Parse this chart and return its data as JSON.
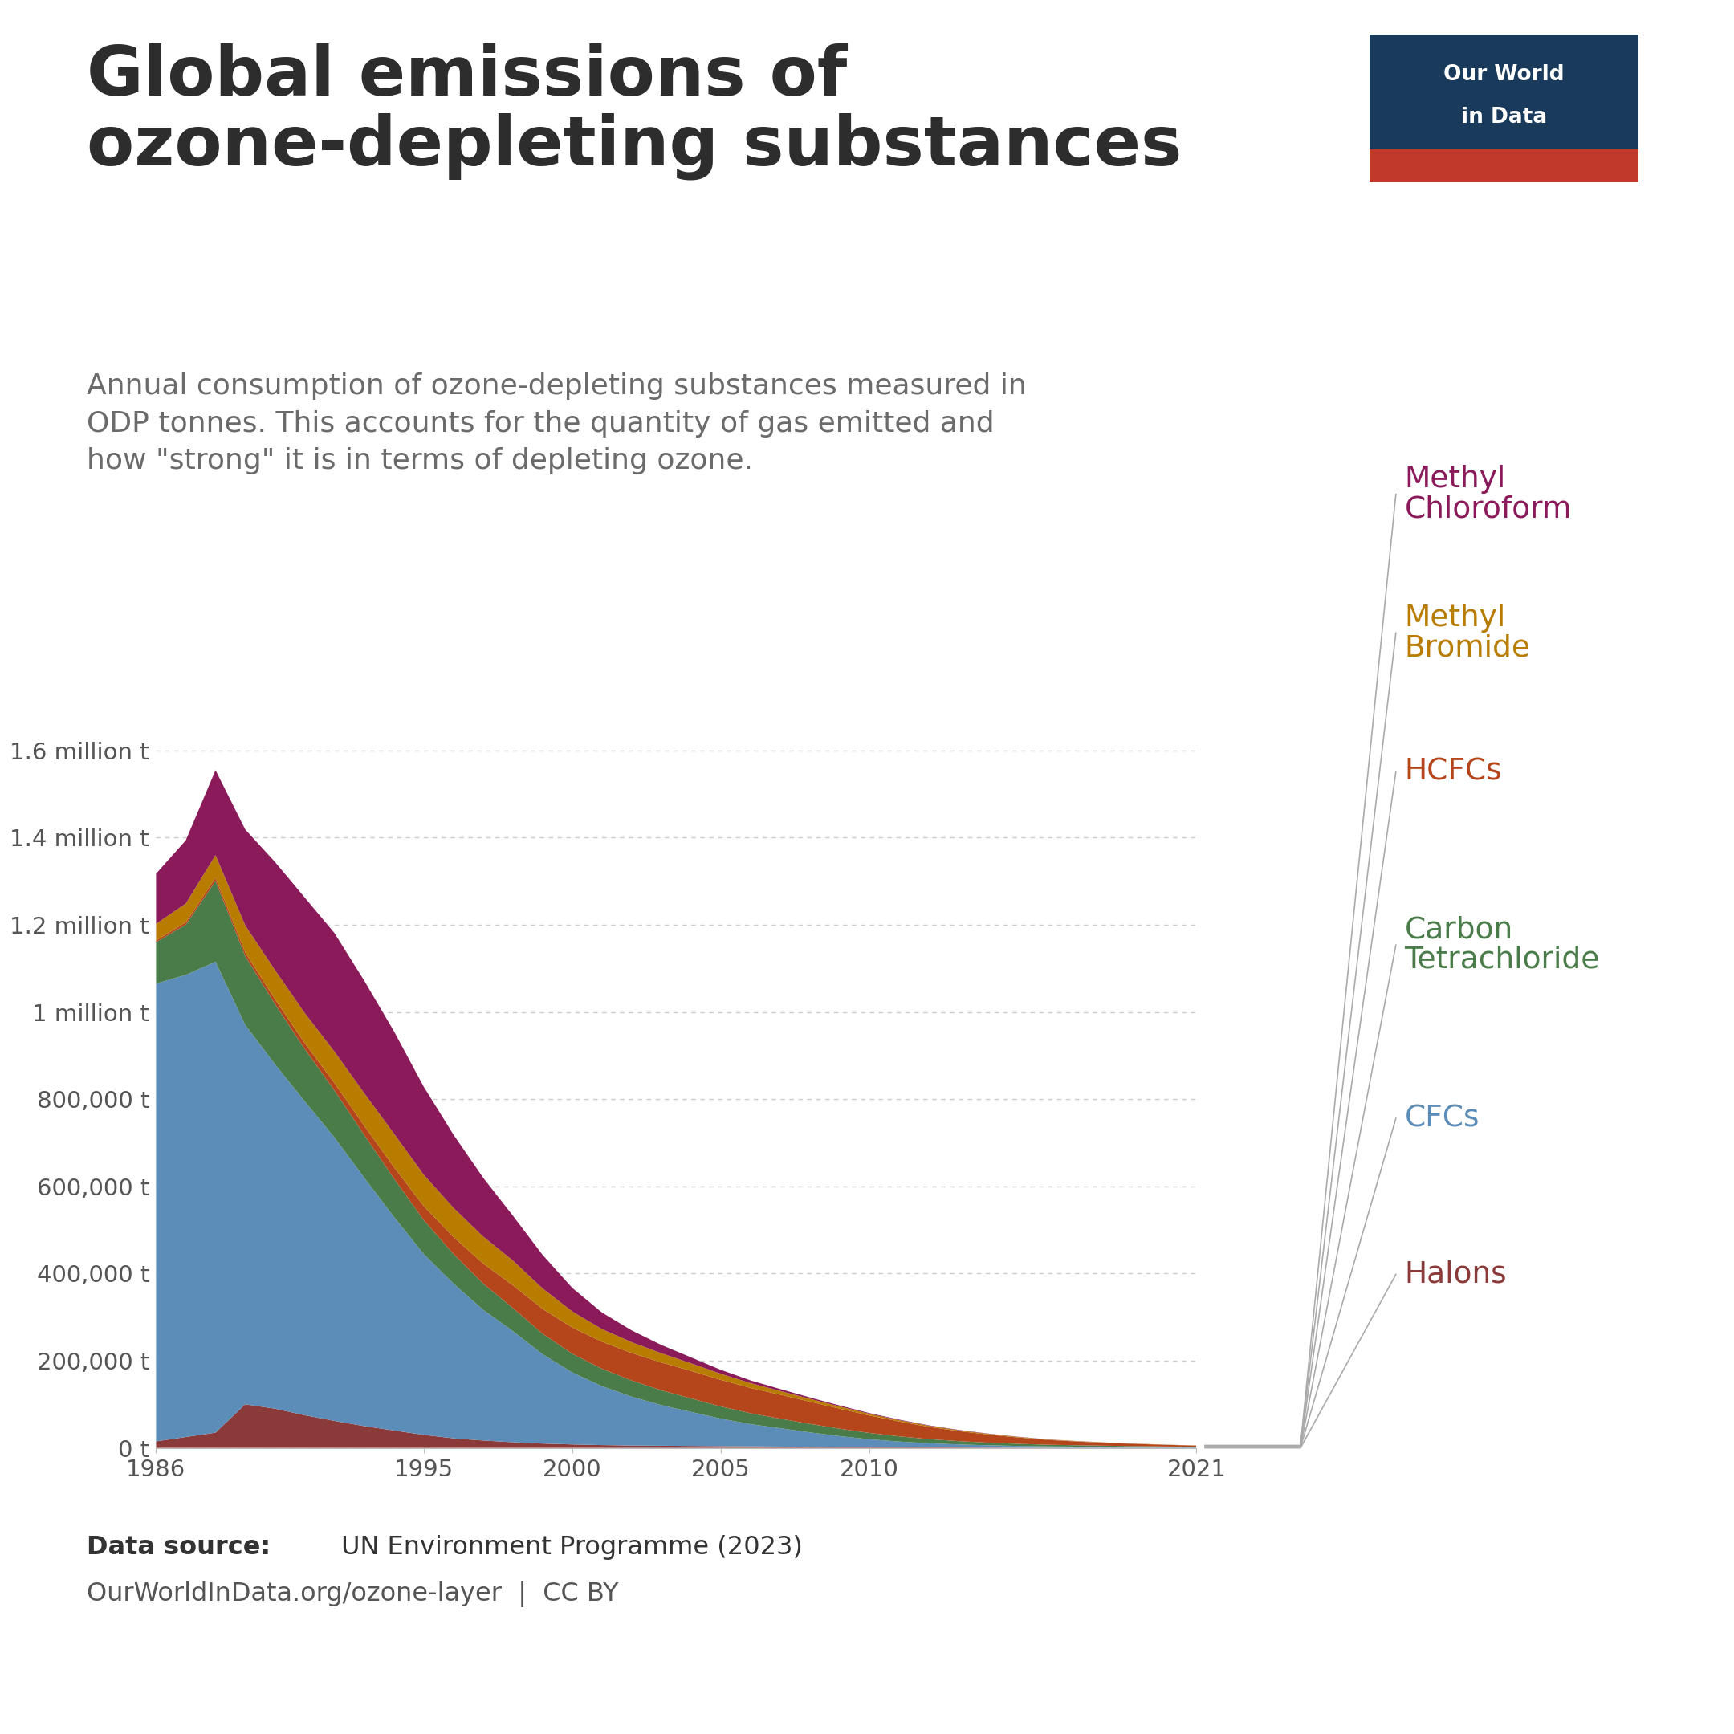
{
  "title": "Global emissions of\nozone-depleting substances",
  "subtitle": "Annual consumption of ozone-depleting substances measured in\nODP tonnes. This accounts for the quantity of gas emitted and\nhow \"strong\" it is in terms of depleting ozone.",
  "background_color": "#ffffff",
  "title_color": "#2d2d2d",
  "subtitle_color": "#6b6b6b",
  "years": [
    1986,
    1987,
    1988,
    1989,
    1990,
    1991,
    1992,
    1993,
    1994,
    1995,
    1996,
    1997,
    1998,
    1999,
    2000,
    2001,
    2002,
    2003,
    2004,
    2005,
    2006,
    2007,
    2008,
    2009,
    2010,
    2011,
    2012,
    2013,
    2014,
    2015,
    2016,
    2017,
    2018,
    2019,
    2020,
    2021
  ],
  "series": {
    "Halons": {
      "color": "#8b3a3a",
      "values": [
        15000,
        25000,
        35000,
        100000,
        90000,
        75000,
        62000,
        50000,
        40000,
        30000,
        22000,
        17000,
        13000,
        10000,
        8000,
        6500,
        5500,
        5000,
        4500,
        4000,
        3500,
        3000,
        2500,
        2000,
        1800,
        1500,
        1200,
        1000,
        800,
        600,
        500,
        400,
        300,
        250,
        200,
        150
      ]
    },
    "CFCs": {
      "color": "#5b8db8",
      "values": [
        1050000,
        1060000,
        1080000,
        870000,
        790000,
        720000,
        650000,
        570000,
        490000,
        415000,
        355000,
        300000,
        255000,
        205000,
        165000,
        135000,
        112000,
        93000,
        78000,
        63000,
        51000,
        42000,
        33000,
        25000,
        18000,
        13000,
        9500,
        7000,
        5200,
        4000,
        3000,
        2500,
        2000,
        1600,
        1200,
        900
      ]
    },
    "Carbon Tetrachloride": {
      "color": "#4a7c4a",
      "values": [
        95000,
        115000,
        185000,
        158000,
        138000,
        120000,
        108000,
        98000,
        88000,
        78000,
        68000,
        60000,
        53000,
        47000,
        43000,
        40000,
        37000,
        34000,
        31000,
        28000,
        25000,
        22000,
        19500,
        17000,
        14500,
        12000,
        9500,
        7500,
        6000,
        4800,
        3800,
        3200,
        2700,
        2200,
        1800,
        1400
      ]
    },
    "HCFCs": {
      "color": "#b5451b",
      "values": [
        4000,
        5500,
        7500,
        8500,
        11000,
        13500,
        17000,
        21000,
        26000,
        32000,
        39000,
        46000,
        52000,
        57000,
        60000,
        62000,
        63000,
        64000,
        63000,
        61000,
        58000,
        55000,
        51000,
        46000,
        40000,
        34000,
        28000,
        23000,
        18500,
        14500,
        11000,
        8500,
        6500,
        5000,
        3800,
        2800
      ]
    },
    "Methyl Bromide": {
      "color": "#b87c00",
      "values": [
        38000,
        43000,
        52000,
        62000,
        67000,
        69000,
        72000,
        75000,
        77000,
        72000,
        67000,
        62000,
        57000,
        47000,
        37000,
        29000,
        25000,
        21000,
        17500,
        14000,
        11000,
        8500,
        6500,
        5000,
        3800,
        3000,
        2500,
        2000,
        1600,
        1200,
        900,
        750,
        600,
        450,
        350,
        280
      ]
    },
    "Methyl Chloroform": {
      "color": "#8b1a5a",
      "values": [
        115000,
        145000,
        195000,
        220000,
        248000,
        265000,
        272000,
        258000,
        235000,
        202000,
        168000,
        135000,
        103000,
        77000,
        54000,
        38000,
        27000,
        19000,
        13500,
        9000,
        6200,
        4400,
        3100,
        2200,
        1700,
        1300,
        1000,
        800,
        650,
        480,
        360,
        280,
        220,
        160,
        120,
        90
      ]
    }
  },
  "stack_order": [
    "Halons",
    "CFCs",
    "Carbon Tetrachloride",
    "HCFCs",
    "Methyl Bromide",
    "Methyl Chloroform"
  ],
  "ylim": [
    0,
    1750000
  ],
  "yticks": [
    0,
    200000,
    400000,
    600000,
    800000,
    1000000,
    1200000,
    1400000,
    1600000
  ],
  "ytick_labels": [
    "0 t",
    "200,000 t",
    "400,000 t",
    "600,000 t",
    "800,000 t",
    "1 million t",
    "1.2 million t",
    "1.4 million t",
    "1.6 million t"
  ],
  "xticks": [
    1986,
    1995,
    2000,
    2005,
    2010,
    2021
  ],
  "legend_items": [
    {
      "label": "Methyl\nChloroform",
      "color": "#8b1a5a",
      "series": "Methyl Chloroform"
    },
    {
      "label": "Methyl\nBromide",
      "color": "#b87c00",
      "series": "Methyl Bromide"
    },
    {
      "label": "HCFCs",
      "color": "#b5451b",
      "series": "HCFCs"
    },
    {
      "label": "Carbon\nTetrachloride",
      "color": "#4a7c4a",
      "series": "Carbon Tetrachloride"
    },
    {
      "label": "CFCs",
      "color": "#5b8db8",
      "series": "CFCs"
    },
    {
      "label": "Halons",
      "color": "#8b3a3a",
      "series": "Halons"
    }
  ],
  "owid_bg": "#1a3a5c",
  "owid_red": "#c0392b"
}
